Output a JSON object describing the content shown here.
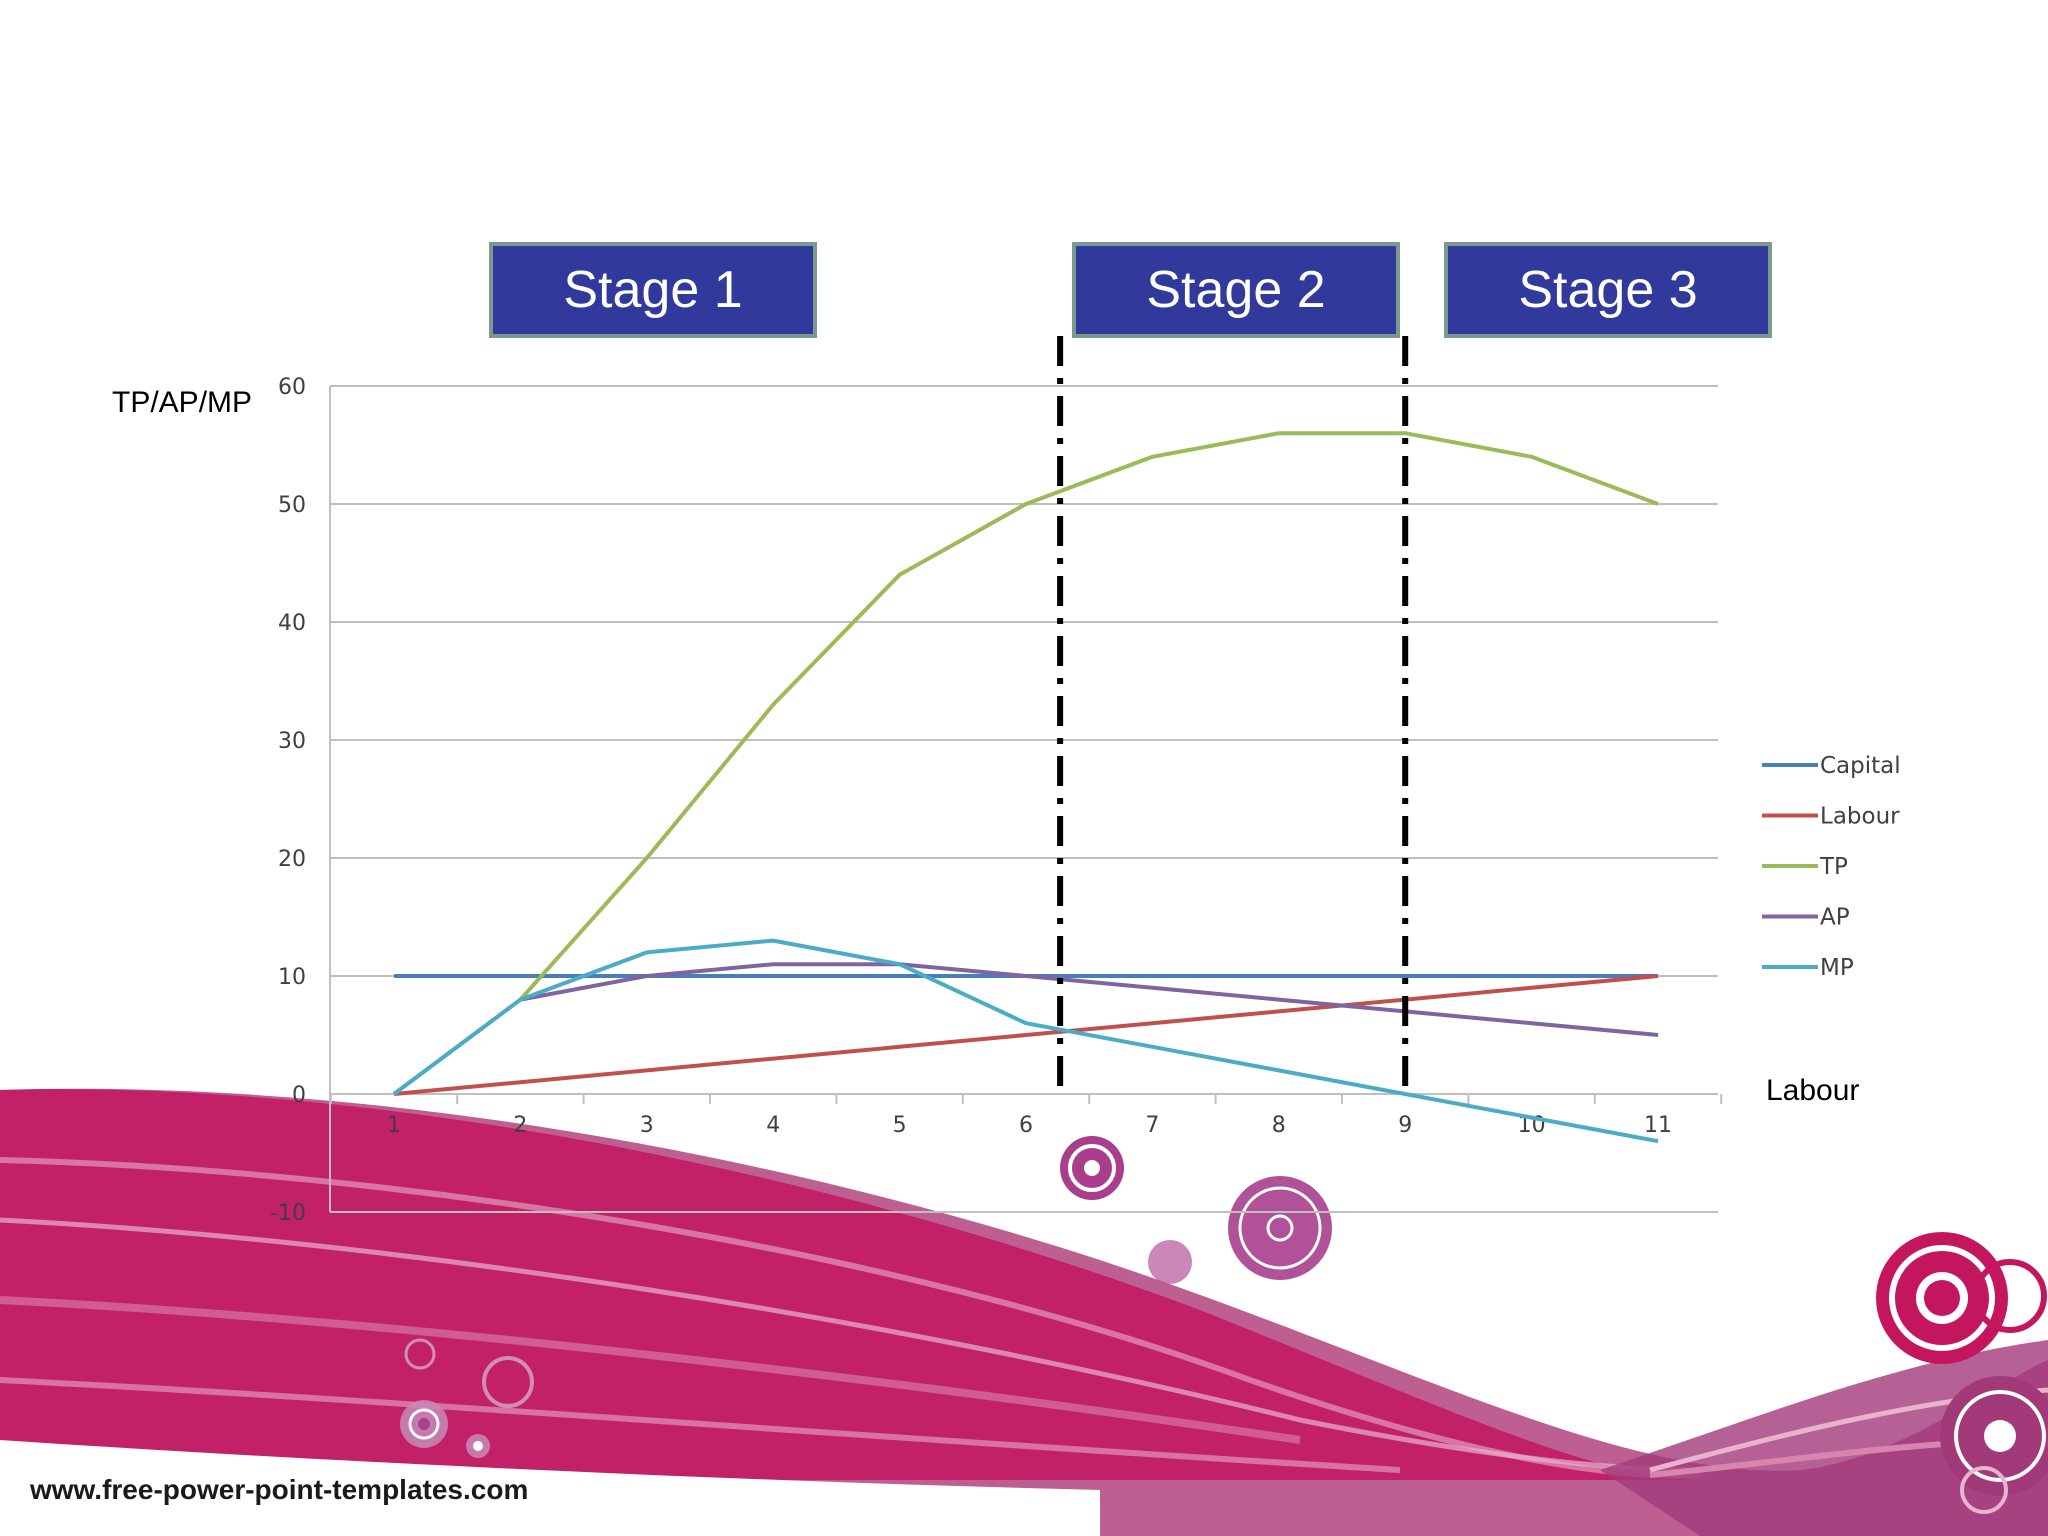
{
  "slide": {
    "stages": [
      "Stage 1",
      "Stage 2",
      "Stage 3"
    ],
    "y_axis_label": "TP/AP/MP",
    "x_axis_label": "Labour",
    "footer_url": "www.free-power-point-templates.com"
  },
  "chart_data": {
    "type": "line",
    "title": "",
    "xlabel": "Labour",
    "ylabel": "TP/AP/MP",
    "categories": [
      "1",
      "2",
      "3",
      "4",
      "5",
      "6",
      "7",
      "8",
      "9",
      "10",
      "11"
    ],
    "ylim": [
      -10,
      60
    ],
    "yticks": [
      "60",
      "50",
      "40",
      "30",
      "20",
      "10",
      "0",
      "-10"
    ],
    "grid": true,
    "legend_position": "right",
    "series": [
      {
        "name": "Capital",
        "color": "#4a7ebb",
        "values": [
          10,
          10,
          10,
          10,
          10,
          10,
          10,
          10,
          10,
          10,
          10
        ]
      },
      {
        "name": "Labour",
        "color": "#c0504d",
        "values": [
          0,
          1,
          2,
          3,
          4,
          5,
          6,
          7,
          8,
          9,
          10
        ]
      },
      {
        "name": "TP",
        "color": "#9bbb59",
        "values": [
          0,
          8,
          20,
          33,
          44,
          50,
          54,
          56,
          56,
          54,
          50
        ]
      },
      {
        "name": "AP",
        "color": "#8064a2",
        "values": [
          null,
          8,
          10,
          11,
          11,
          10,
          9,
          8,
          7,
          6,
          5
        ]
      },
      {
        "name": "MP",
        "color": "#4bacc6",
        "values": [
          0,
          8,
          12,
          13,
          11,
          6,
          4,
          2,
          0,
          -2,
          -4
        ]
      }
    ],
    "stage_boundaries": [
      6.27,
      9
    ]
  }
}
